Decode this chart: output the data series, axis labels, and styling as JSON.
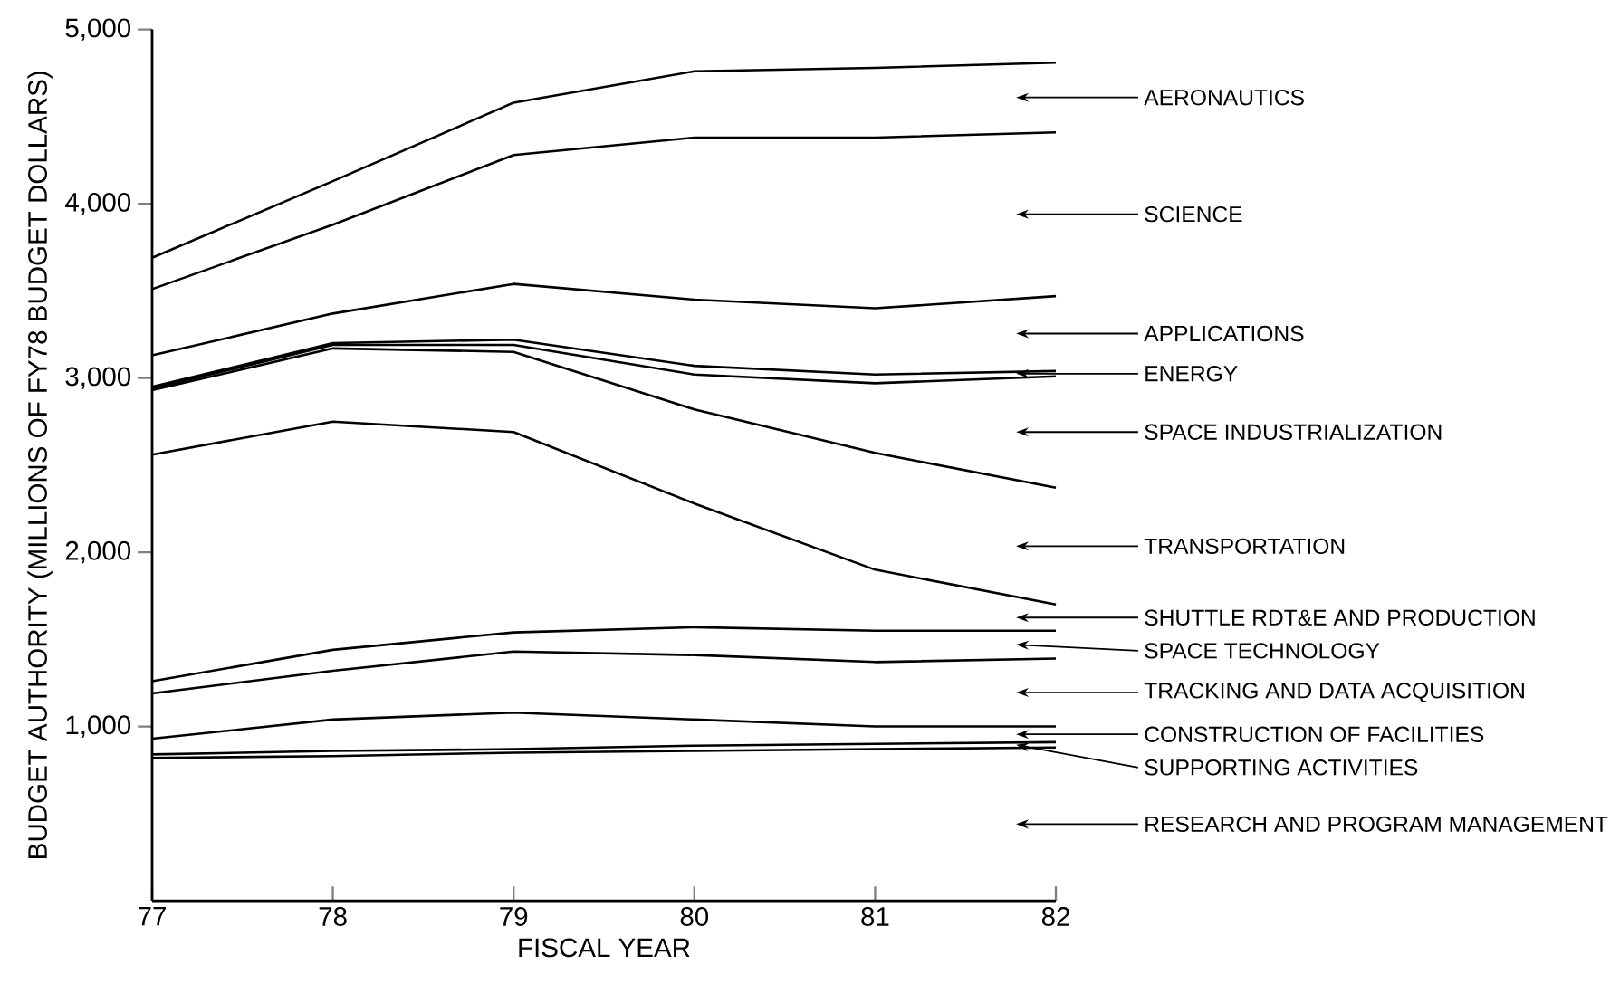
{
  "chart_data": {
    "type": "line",
    "xlabel": "FISCAL YEAR",
    "ylabel": "BUDGET AUTHORITY (MILLIONS OF FY78 BUDGET DOLLARS)",
    "x": [
      77,
      78,
      79,
      80,
      81,
      82
    ],
    "xlim": [
      77,
      82
    ],
    "xticks": [
      77,
      78,
      79,
      80,
      81,
      82
    ],
    "ylim": [
      0,
      5000
    ],
    "yticks": [
      {
        "value": 1000,
        "label": "1,000"
      },
      {
        "value": 2000,
        "label": "2,000"
      },
      {
        "value": 3000,
        "label": "3,000"
      },
      {
        "value": 4000,
        "label": "4,000"
      },
      {
        "value": 5000,
        "label": "5,000"
      }
    ],
    "line_style": "solid",
    "series": [
      {
        "name": "AERONAUTICS",
        "color": "#000000",
        "values": [
          3690,
          4130,
          4580,
          4760,
          4780,
          4810
        ]
      },
      {
        "name": "SCIENCE",
        "color": "#000000",
        "values": [
          3510,
          3880,
          4280,
          4380,
          4380,
          4410
        ]
      },
      {
        "name": "APPLICATIONS",
        "color": "#000000",
        "values": [
          3130,
          3370,
          3540,
          3450,
          3400,
          3470
        ]
      },
      {
        "name": "ENERGY",
        "color": "#000000",
        "values": [
          2950,
          3200,
          3220,
          3070,
          3020,
          3040
        ]
      },
      {
        "name": "SPACE INDUSTRIALIZATION",
        "color": "#000000",
        "values": [
          2940,
          3190,
          3190,
          3020,
          2970,
          3010
        ]
      },
      {
        "name": "TRANSPORTATION",
        "color": "#000000",
        "values": [
          2930,
          3170,
          3150,
          2820,
          2570,
          2370
        ]
      },
      {
        "name": "SHUTTLE RDT&E AND PRODUCTION",
        "color": "#000000",
        "values": [
          2560,
          2750,
          2690,
          2280,
          1900,
          1700
        ]
      },
      {
        "name": "SPACE TECHNOLOGY",
        "color": "#000000",
        "values": [
          1260,
          1440,
          1540,
          1570,
          1550,
          1550
        ]
      },
      {
        "name": "TRACKING AND DATA ACQUISITION",
        "color": "#000000",
        "values": [
          1190,
          1320,
          1430,
          1410,
          1370,
          1390
        ]
      },
      {
        "name": "CONSTRUCTION OF FACILITIES",
        "color": "#000000",
        "values": [
          930,
          1040,
          1080,
          1040,
          1000,
          1000
        ]
      },
      {
        "name": "SUPPORTING ACTIVITIES",
        "color": "#000000",
        "values": [
          840,
          860,
          870,
          890,
          900,
          910
        ]
      },
      {
        "name": "RESEARCH AND PROGRAM MANAGEMENT",
        "color": "#000000",
        "values": [
          820,
          830,
          850,
          860,
          870,
          880
        ]
      }
    ]
  }
}
